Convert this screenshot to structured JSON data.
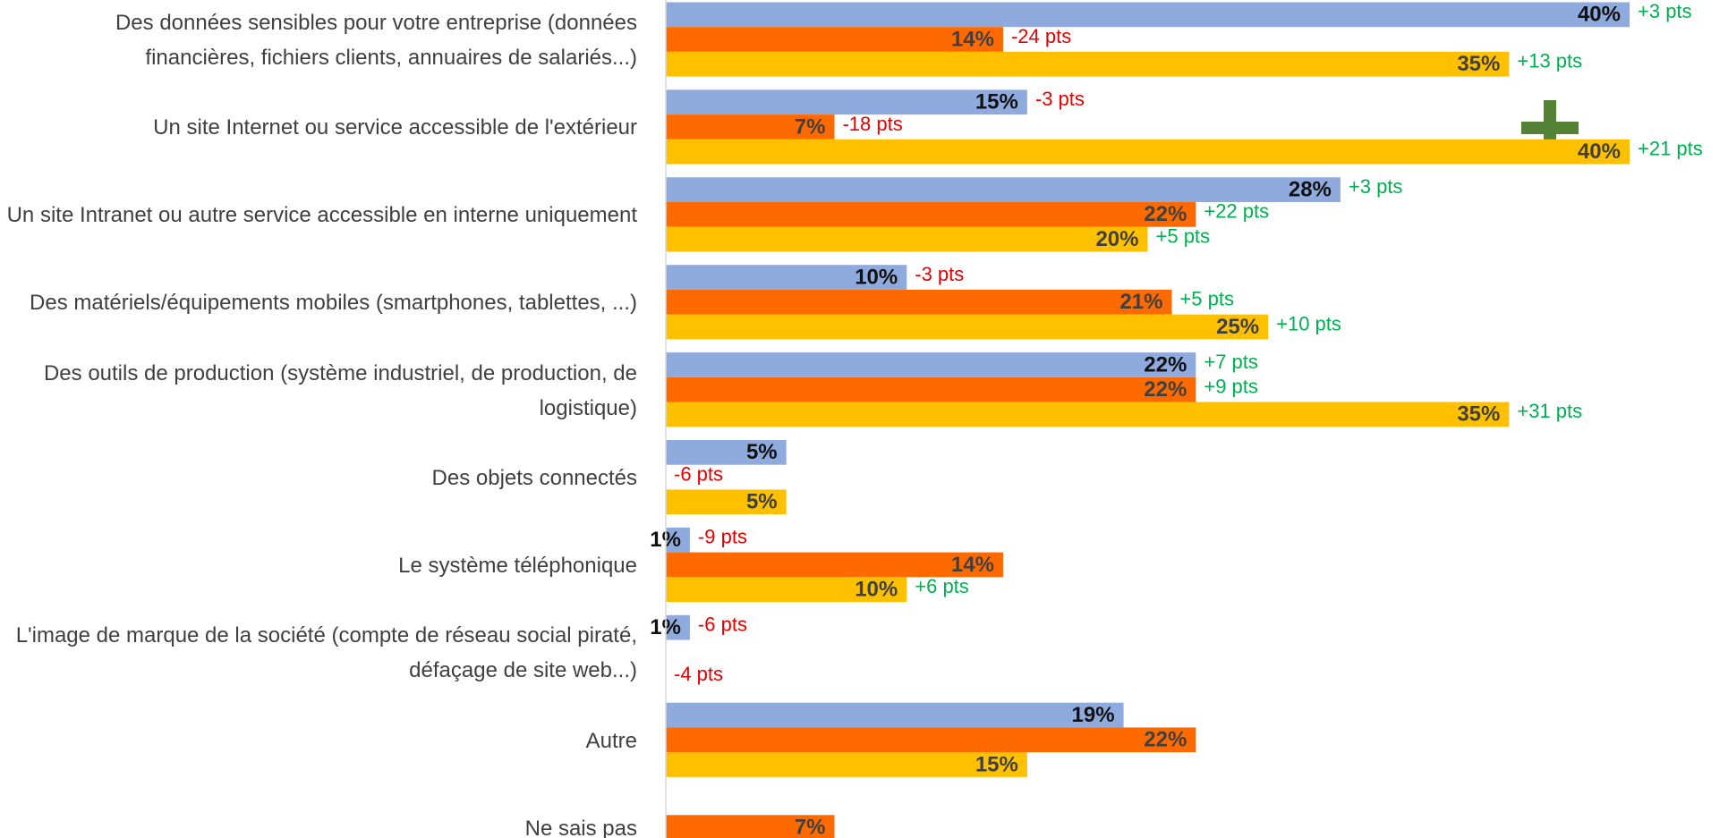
{
  "chart_data": {
    "type": "hbar",
    "categories": [
      "Des données sensibles pour votre entreprise (données financières, fichiers clients, annuaires de salariés...)",
      "Un site Internet ou service accessible de l'extérieur",
      "Un site Intranet ou autre service accessible en interne uniquement",
      "Des matériels/équipements mobiles (smartphones, tablettes, ...)",
      "Des outils de production (système industriel, de production, de logistique)",
      "Des objets connectés",
      "Le système téléphonique",
      "L'image de marque de la société (compte de réseau social piraté, défaçage de site web...)",
      "Autre",
      "Ne sais pas"
    ],
    "xlim": [
      0,
      40
    ],
    "positive_color": "#00b050",
    "negative_color": "#e60000",
    "series": [
      {
        "color": "#8faadc",
        "values": [
          40,
          15,
          28,
          10,
          22,
          5,
          1,
          1,
          19,
          null
        ],
        "value_labels": [
          "40%",
          "15%",
          "28%",
          "10%",
          "22%",
          "5%",
          "1%",
          "1%",
          "19%",
          null
        ],
        "deltas": [
          3,
          -3,
          3,
          -3,
          7,
          null,
          -9,
          -6,
          null,
          null
        ],
        "delta_labels": [
          "+3 pts",
          "-3 pts",
          "+3 pts",
          "-3 pts",
          "+7 pts",
          null,
          "-9 pts",
          "-6 pts",
          null,
          null
        ]
      },
      {
        "color": "#ff6a00",
        "values": [
          14,
          7,
          22,
          21,
          22,
          null,
          14,
          null,
          22,
          7
        ],
        "value_labels": [
          "14%",
          "7%",
          "22%",
          "21%",
          "22%",
          null,
          "14%",
          null,
          "22%",
          "7%"
        ],
        "deltas": [
          -24,
          -18,
          22,
          5,
          9,
          -6,
          null,
          null,
          null,
          null
        ],
        "delta_labels": [
          "-24 pts",
          "-18 pts",
          "+22 pts",
          "+5 pts",
          "+9 pts",
          "-6 pts",
          null,
          null,
          null,
          null
        ]
      },
      {
        "color": "#ffc000",
        "values": [
          35,
          40,
          20,
          25,
          35,
          5,
          10,
          null,
          15,
          null
        ],
        "value_labels": [
          "35%",
          "40%",
          "20%",
          "25%",
          "35%",
          "5%",
          "10%",
          null,
          "15%",
          null
        ],
        "deltas": [
          13,
          21,
          5,
          10,
          31,
          null,
          6,
          -4,
          null,
          null
        ],
        "delta_labels": [
          "+13 pts",
          "+21 pts",
          "+5 pts",
          "+10 pts",
          "+31 pts",
          null,
          "+6 pts",
          "-4 pts",
          null,
          null
        ]
      }
    ]
  }
}
